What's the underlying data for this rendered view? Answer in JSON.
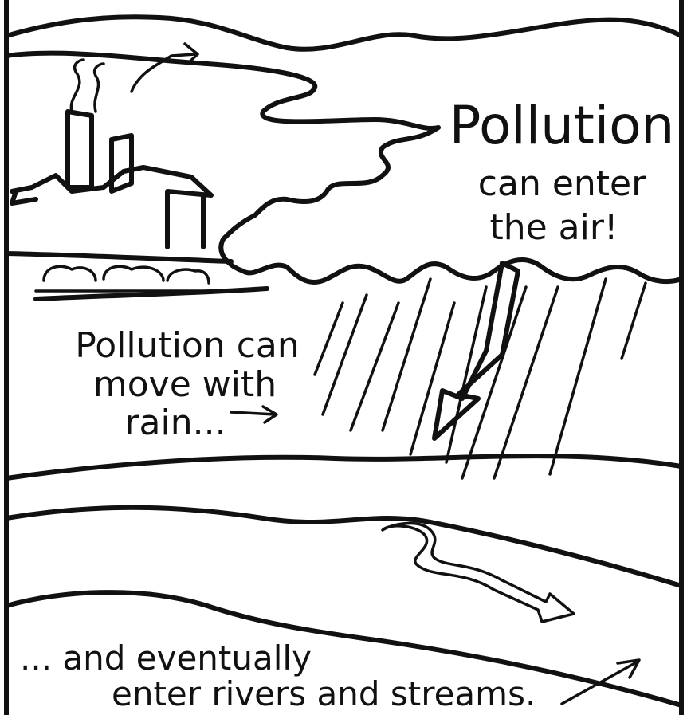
{
  "air_label": {
    "lines": [
      "Pollution",
      "can enter",
      "the air!"
    ]
  },
  "rain_label": {
    "lines": [
      "Pollution can",
      "move with",
      "rain..."
    ]
  },
  "river_label": {
    "lines": [
      "... and eventually",
      "enter rivers and streams."
    ]
  }
}
